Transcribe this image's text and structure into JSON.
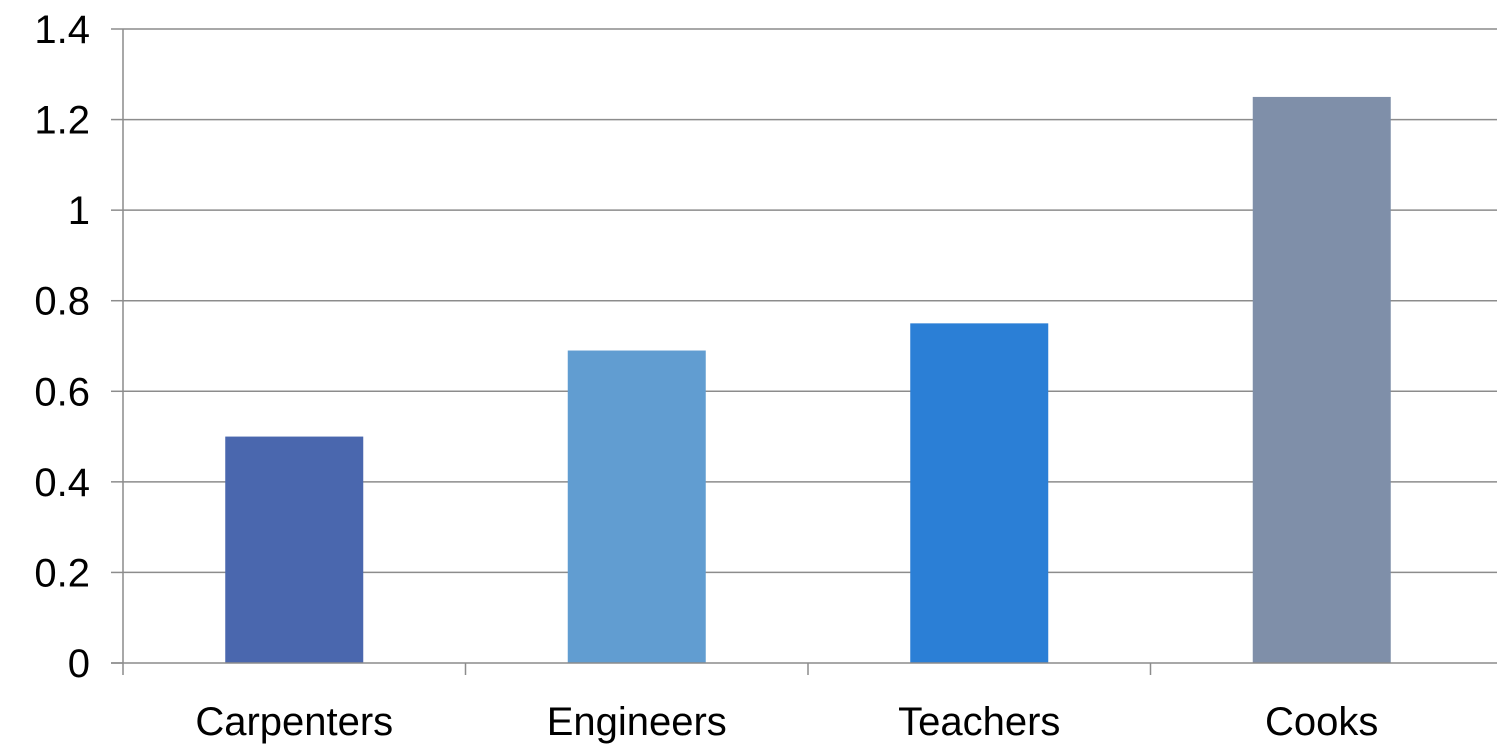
{
  "chart_data": {
    "type": "bar",
    "categories": [
      "Carpenters",
      "Engineers",
      "Teachers",
      "Cooks"
    ],
    "values": [
      0.5,
      0.69,
      0.75,
      1.25
    ],
    "colors": [
      "#4a67ae",
      "#619dd1",
      "#2b7fd6",
      "#7f8fa9"
    ],
    "title": "",
    "xlabel": "",
    "ylabel": "",
    "ylim": [
      0,
      1.4
    ],
    "yticks": [
      "0",
      "0.2",
      "0.4",
      "0.6",
      "0.8",
      "1",
      "1.2",
      "1.4"
    ],
    "grid": true,
    "legend": "none"
  }
}
